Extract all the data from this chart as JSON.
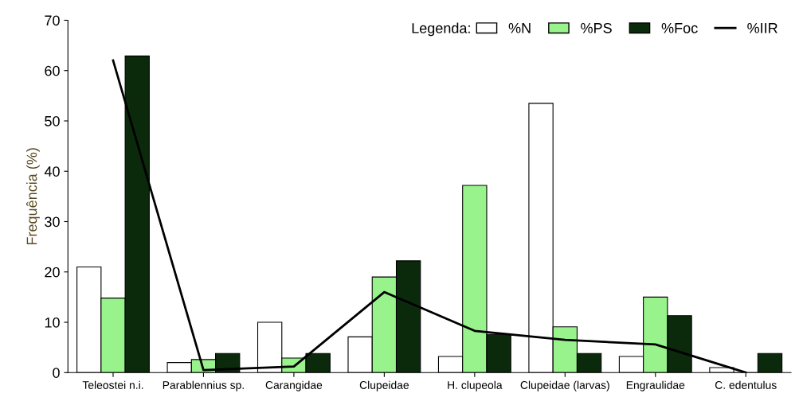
{
  "chart_data": {
    "type": "bar",
    "ylabel": "Frequência (%)",
    "legend_title": "Legenda:",
    "categories": [
      "Teleostei n.i.",
      "Parablennius sp.",
      "Carangidae",
      "Clupeidae",
      "H. clupeola",
      "Clupeidae (larvas)",
      "Engraulidae",
      "C. edentulus"
    ],
    "series": [
      {
        "name": "%N",
        "color": "#ffffff",
        "values": [
          21.0,
          2.0,
          10.0,
          7.1,
          3.2,
          53.5,
          3.2,
          1.0
        ]
      },
      {
        "name": "%PS",
        "color": "#99f38c",
        "values": [
          14.8,
          2.6,
          2.9,
          19.0,
          37.2,
          9.1,
          15.0,
          0
        ]
      },
      {
        "name": "%Foc",
        "color": "#0b2a0b",
        "values": [
          62.9,
          3.8,
          3.8,
          22.2,
          7.6,
          3.8,
          11.3,
          3.8
        ]
      },
      {
        "name": "%IIR",
        "color": "#000000",
        "type": "line",
        "values": [
          62.0,
          0.5,
          1.2,
          16.0,
          8.3,
          6.5,
          5.6,
          0.0
        ]
      }
    ],
    "ylim": [
      0,
      70
    ],
    "yticks": [
      0,
      10,
      20,
      30,
      40,
      50,
      60,
      70
    ],
    "grid": false,
    "legend": "top right",
    "marker": "none",
    "line_style": "solid"
  }
}
